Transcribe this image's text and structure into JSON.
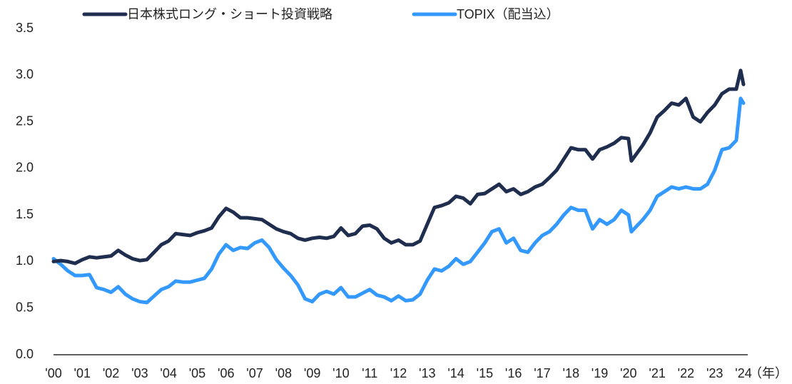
{
  "chart_data": {
    "type": "line",
    "x_label": "（年）",
    "xlim": [
      0,
      24
    ],
    "xticks": [
      {
        "value": 0,
        "label": "'00"
      },
      {
        "value": 1,
        "label": "'01"
      },
      {
        "value": 2,
        "label": "'02"
      },
      {
        "value": 3,
        "label": "'03"
      },
      {
        "value": 4,
        "label": "'04"
      },
      {
        "value": 5,
        "label": "'05"
      },
      {
        "value": 6,
        "label": "'06"
      },
      {
        "value": 7,
        "label": "'07"
      },
      {
        "value": 8,
        "label": "'08"
      },
      {
        "value": 9,
        "label": "'09"
      },
      {
        "value": 10,
        "label": "'10"
      },
      {
        "value": 11,
        "label": "'11"
      },
      {
        "value": 12,
        "label": "'12"
      },
      {
        "value": 13,
        "label": "'13"
      },
      {
        "value": 14,
        "label": "'14"
      },
      {
        "value": 15,
        "label": "'15"
      },
      {
        "value": 16,
        "label": "'16"
      },
      {
        "value": 17,
        "label": "'17"
      },
      {
        "value": 18,
        "label": "'18"
      },
      {
        "value": 19,
        "label": "'19"
      },
      {
        "value": 20,
        "label": "'20"
      },
      {
        "value": 21,
        "label": "'21"
      },
      {
        "value": 22,
        "label": "'22"
      },
      {
        "value": 23,
        "label": "'23"
      },
      {
        "value": 24,
        "label": "'24"
      }
    ],
    "ylim": [
      0,
      3.5
    ],
    "yticks": [
      {
        "value": 0,
        "label": "0.0"
      },
      0.5,
      {
        "value": 1,
        "label": "1.0"
      },
      1.5,
      {
        "value": 2,
        "label": "2.0"
      },
      2.5,
      {
        "value": 3,
        "label": "3.0"
      },
      3.5
    ],
    "grid": false,
    "x": [
      0,
      0.25,
      0.5,
      0.75,
      1,
      1.25,
      1.5,
      1.75,
      2,
      2.25,
      2.5,
      2.75,
      3,
      3.25,
      3.5,
      3.75,
      4,
      4.25,
      4.5,
      4.75,
      5,
      5.25,
      5.5,
      5.75,
      6,
      6.25,
      6.5,
      6.75,
      7,
      7.25,
      7.5,
      7.75,
      8,
      8.25,
      8.5,
      8.75,
      9,
      9.25,
      9.5,
      9.75,
      10,
      10.25,
      10.5,
      10.75,
      11,
      11.25,
      11.5,
      11.75,
      12,
      12.25,
      12.5,
      12.75,
      13,
      13.25,
      13.5,
      13.75,
      14,
      14.25,
      14.5,
      14.75,
      15,
      15.25,
      15.5,
      15.75,
      16,
      16.25,
      16.5,
      16.75,
      17,
      17.25,
      17.5,
      17.75,
      18,
      18.25,
      18.5,
      18.75,
      19,
      19.25,
      19.5,
      19.75,
      20,
      20.1,
      20.5,
      20.75,
      21,
      21.25,
      21.5,
      21.75,
      22,
      22.25,
      22.5,
      22.75,
      23,
      23.25,
      23.5,
      23.75,
      23.9,
      24
    ],
    "series": [
      {
        "name": "日本株式ロング・ショート投資戦略",
        "color": "#1f2d4e",
        "values": [
          1.0,
          1.01,
          1.0,
          0.98,
          1.02,
          1.05,
          1.04,
          1.05,
          1.06,
          1.12,
          1.07,
          1.03,
          1.01,
          1.02,
          1.1,
          1.18,
          1.22,
          1.3,
          1.29,
          1.28,
          1.31,
          1.33,
          1.36,
          1.48,
          1.57,
          1.53,
          1.47,
          1.47,
          1.46,
          1.45,
          1.4,
          1.35,
          1.32,
          1.3,
          1.25,
          1.23,
          1.25,
          1.26,
          1.25,
          1.27,
          1.36,
          1.28,
          1.3,
          1.38,
          1.39,
          1.35,
          1.25,
          1.2,
          1.23,
          1.18,
          1.18,
          1.22,
          1.4,
          1.58,
          1.6,
          1.63,
          1.7,
          1.68,
          1.62,
          1.72,
          1.73,
          1.78,
          1.83,
          1.75,
          1.78,
          1.72,
          1.75,
          1.8,
          1.83,
          1.9,
          1.98,
          2.1,
          2.22,
          2.2,
          2.2,
          2.1,
          2.2,
          2.23,
          2.27,
          2.33,
          2.32,
          2.08,
          2.25,
          2.38,
          2.55,
          2.62,
          2.7,
          2.68,
          2.75,
          2.55,
          2.5,
          2.6,
          2.68,
          2.8,
          2.85,
          2.85,
          3.05,
          2.9
        ]
      },
      {
        "name": "TOPIX（配当込）",
        "color": "#3399ff",
        "values": [
          1.03,
          0.97,
          0.9,
          0.85,
          0.85,
          0.86,
          0.72,
          0.7,
          0.67,
          0.73,
          0.65,
          0.6,
          0.57,
          0.56,
          0.63,
          0.7,
          0.73,
          0.79,
          0.78,
          0.78,
          0.8,
          0.82,
          0.92,
          1.08,
          1.18,
          1.12,
          1.15,
          1.14,
          1.2,
          1.23,
          1.15,
          1.02,
          0.93,
          0.85,
          0.75,
          0.6,
          0.57,
          0.65,
          0.68,
          0.65,
          0.72,
          0.62,
          0.62,
          0.66,
          0.7,
          0.64,
          0.62,
          0.58,
          0.63,
          0.58,
          0.59,
          0.65,
          0.8,
          0.92,
          0.9,
          0.95,
          1.03,
          0.97,
          1.0,
          1.1,
          1.2,
          1.32,
          1.35,
          1.2,
          1.25,
          1.12,
          1.1,
          1.2,
          1.28,
          1.32,
          1.4,
          1.5,
          1.58,
          1.55,
          1.55,
          1.35,
          1.45,
          1.4,
          1.45,
          1.55,
          1.5,
          1.32,
          1.45,
          1.55,
          1.7,
          1.75,
          1.8,
          1.78,
          1.8,
          1.78,
          1.78,
          1.83,
          1.98,
          2.2,
          2.22,
          2.3,
          2.75,
          2.7
        ]
      }
    ]
  }
}
